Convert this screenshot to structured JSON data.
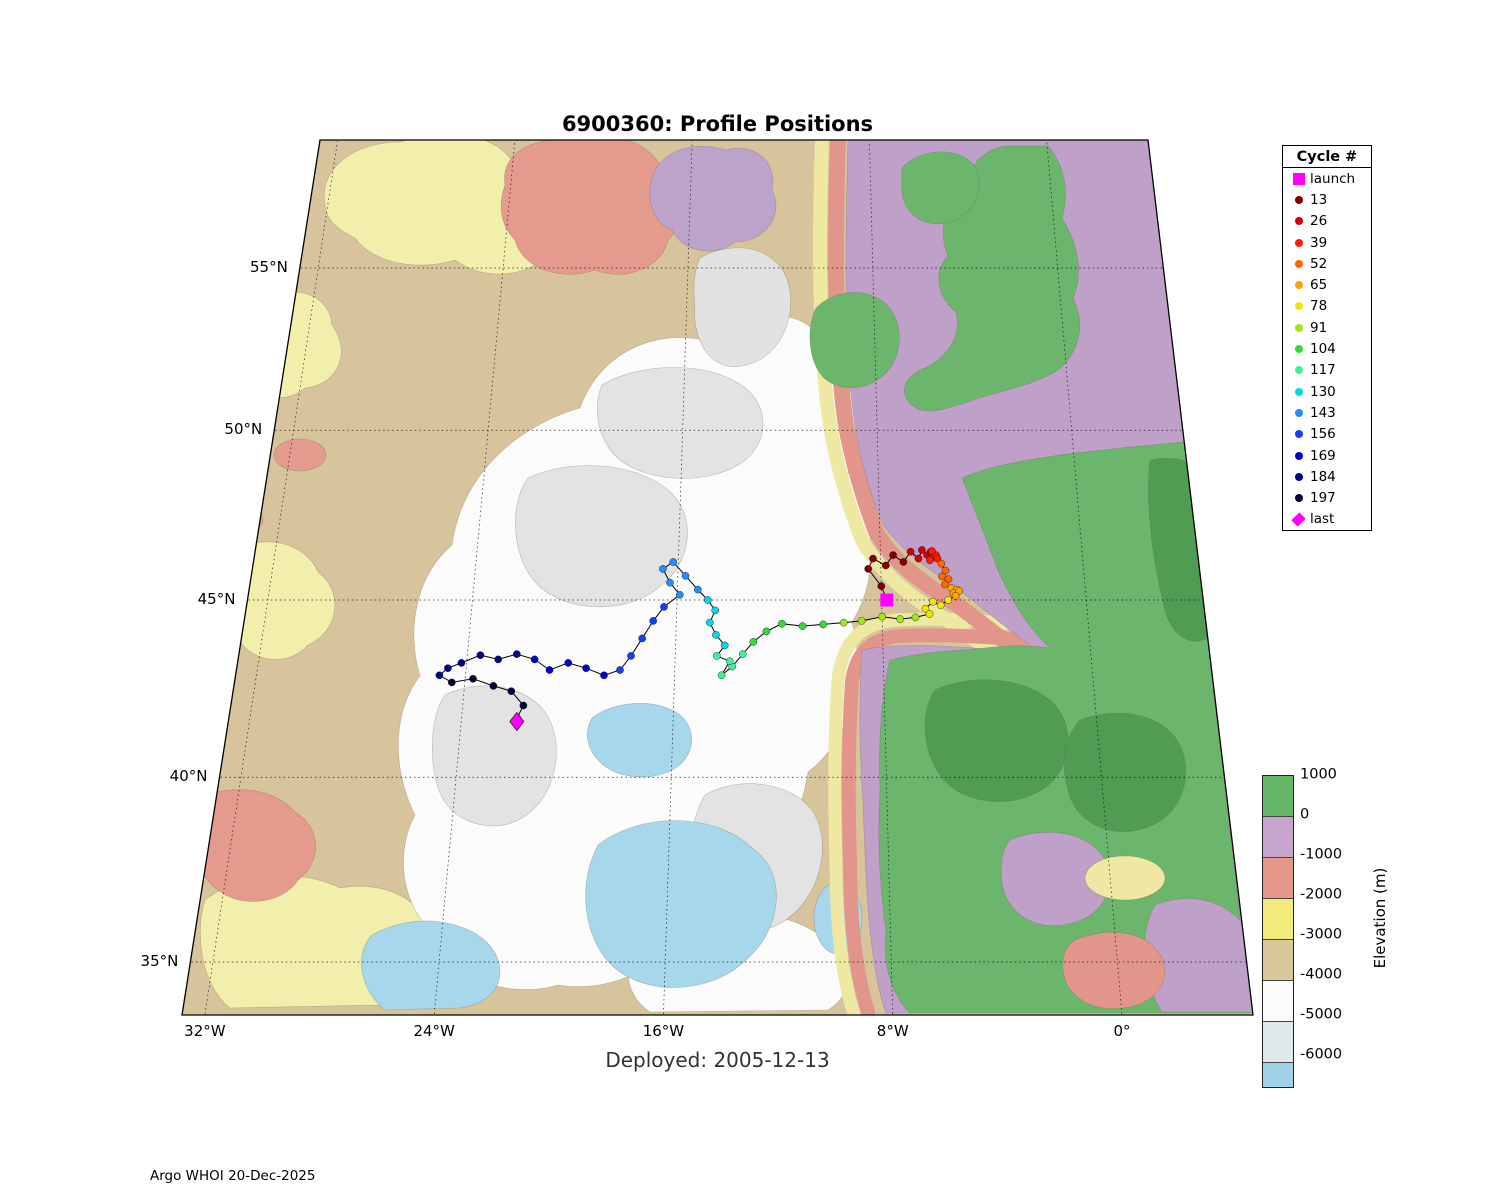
{
  "title": "6900360: Profile Positions",
  "subtitle": "Deployed: 2005-12-13",
  "credit": "Argo WHOI 20-Dec-2025",
  "legend": {
    "title": "Cycle #",
    "entries": [
      {
        "label": "launch",
        "marker": "square",
        "color": "#ff00ff"
      },
      {
        "label": "13",
        "marker": "dot",
        "color": "#7f0000"
      },
      {
        "label": "26",
        "marker": "dot",
        "color": "#d40000"
      },
      {
        "label": "39",
        "marker": "dot",
        "color": "#ff1a00"
      },
      {
        "label": "52",
        "marker": "dot",
        "color": "#ff6600"
      },
      {
        "label": "65",
        "marker": "dot",
        "color": "#ffa500"
      },
      {
        "label": "78",
        "marker": "dot",
        "color": "#eee800"
      },
      {
        "label": "91",
        "marker": "dot",
        "color": "#a0e818"
      },
      {
        "label": "104",
        "marker": "dot",
        "color": "#33dd33"
      },
      {
        "label": "117",
        "marker": "dot",
        "color": "#40f0a0"
      },
      {
        "label": "130",
        "marker": "dot",
        "color": "#00d8e8"
      },
      {
        "label": "143",
        "marker": "dot",
        "color": "#1e90ff"
      },
      {
        "label": "156",
        "marker": "dot",
        "color": "#1a3cff"
      },
      {
        "label": "169",
        "marker": "dot",
        "color": "#0000d8"
      },
      {
        "label": "184",
        "marker": "dot",
        "color": "#000088"
      },
      {
        "label": "197",
        "marker": "dot",
        "color": "#000038"
      },
      {
        "label": "last",
        "marker": "diamond",
        "color": "#ff00ff"
      }
    ]
  },
  "colorbar": {
    "title": "Elevation (m)",
    "labels": [
      "1000",
      "0",
      "-1000",
      "-2000",
      "-3000",
      "-4000",
      "-5000",
      "-6000"
    ],
    "bands": [
      "#66b868",
      "#c7a6ce",
      "#e5978a",
      "#f2ec7d",
      "#d9c89c",
      "#fcfcfc",
      "#dfe9ec",
      "#9fd2e8"
    ]
  },
  "axes": {
    "lat_ticks": [
      {
        "deg": 55,
        "label": "55°N"
      },
      {
        "deg": 50,
        "label": "50°N"
      },
      {
        "deg": 45,
        "label": "45°N"
      },
      {
        "deg": 40,
        "label": "40°N"
      },
      {
        "deg": 35,
        "label": "35°N"
      }
    ],
    "lon_ticks": [
      {
        "deg": -32,
        "label": "32°W"
      },
      {
        "deg": -24,
        "label": "24°W"
      },
      {
        "deg": -16,
        "label": "16°W"
      },
      {
        "deg": -8,
        "label": "8°W"
      },
      {
        "deg": 0,
        "label": "0°"
      }
    ]
  },
  "chart_data": {
    "type": "scatter",
    "title": "6900360: Profile Positions",
    "float_id": "6900360",
    "deployed": "2005-12-13",
    "projection": "conic",
    "lon_range": [
      -33,
      4
    ],
    "lat_range": [
      34,
      59
    ],
    "grid": true,
    "legend_position": "top-right-outside",
    "launch": {
      "lon": -7.8,
      "lat": 45.0
    },
    "last": {
      "lon": -21.9,
      "lat": 41.55
    },
    "track": [
      [
        -8.0,
        45.4,
        1
      ],
      [
        -8.5,
        45.9,
        1
      ],
      [
        -8.3,
        46.2,
        1
      ],
      [
        -7.8,
        46.0,
        1
      ],
      [
        -7.5,
        46.3,
        1
      ],
      [
        -7.1,
        46.1,
        1
      ],
      [
        -6.8,
        46.4,
        2
      ],
      [
        -6.5,
        46.2,
        2
      ],
      [
        -6.35,
        46.45,
        2
      ],
      [
        -6.15,
        46.3,
        2
      ],
      [
        -6.0,
        46.4,
        2
      ],
      [
        -5.9,
        46.25,
        3
      ],
      [
        -6.05,
        46.15,
        3
      ],
      [
        -5.8,
        46.3,
        3
      ],
      [
        -5.95,
        46.42,
        3
      ],
      [
        -5.75,
        46.2,
        3
      ],
      [
        -5.6,
        46.05,
        4
      ],
      [
        -5.45,
        45.85,
        4
      ],
      [
        -5.6,
        45.68,
        4
      ],
      [
        -5.35,
        45.6,
        4
      ],
      [
        -5.5,
        45.45,
        4
      ],
      [
        -5.25,
        45.35,
        5
      ],
      [
        -5.05,
        45.3,
        5
      ],
      [
        -5.18,
        45.2,
        5
      ],
      [
        -4.95,
        45.26,
        5
      ],
      [
        -5.1,
        45.12,
        5
      ],
      [
        -5.4,
        45.0,
        6
      ],
      [
        -5.7,
        44.85,
        6
      ],
      [
        -6.0,
        44.95,
        6
      ],
      [
        -6.3,
        44.75,
        6
      ],
      [
        -6.15,
        44.6,
        6
      ],
      [
        -6.7,
        44.5,
        7
      ],
      [
        -7.3,
        44.45,
        7
      ],
      [
        -8.0,
        44.52,
        7
      ],
      [
        -8.8,
        44.4,
        7
      ],
      [
        -9.5,
        44.35,
        7
      ],
      [
        -10.3,
        44.3,
        8
      ],
      [
        -11.1,
        44.25,
        8
      ],
      [
        -11.9,
        44.32,
        8
      ],
      [
        -12.5,
        44.1,
        8
      ],
      [
        -13.0,
        43.8,
        8
      ],
      [
        -13.4,
        43.45,
        9
      ],
      [
        -13.8,
        43.1,
        9
      ],
      [
        -14.2,
        42.85,
        9
      ],
      [
        -13.9,
        43.25,
        9
      ],
      [
        -14.4,
        43.4,
        9
      ],
      [
        -14.1,
        43.7,
        10
      ],
      [
        -14.45,
        44.0,
        10
      ],
      [
        -14.7,
        44.35,
        10
      ],
      [
        -14.5,
        44.7,
        10
      ],
      [
        -14.8,
        45.0,
        10
      ],
      [
        -15.2,
        45.3,
        11
      ],
      [
        -15.7,
        45.7,
        11
      ],
      [
        -16.2,
        46.1,
        11
      ],
      [
        -16.6,
        45.9,
        11
      ],
      [
        -16.3,
        45.5,
        11
      ],
      [
        -15.9,
        45.15,
        11
      ],
      [
        -16.5,
        44.8,
        12
      ],
      [
        -16.9,
        44.4,
        12
      ],
      [
        -17.3,
        43.9,
        12
      ],
      [
        -17.7,
        43.4,
        12
      ],
      [
        -18.1,
        43.0,
        12
      ],
      [
        -18.7,
        42.85,
        13
      ],
      [
        -19.4,
        43.05,
        13
      ],
      [
        -20.1,
        43.2,
        13
      ],
      [
        -20.8,
        43.0,
        13
      ],
      [
        -21.4,
        43.3,
        13
      ],
      [
        -22.1,
        43.45,
        14
      ],
      [
        -22.8,
        43.3,
        14
      ],
      [
        -23.5,
        43.42,
        14
      ],
      [
        -24.2,
        43.2,
        14
      ],
      [
        -24.7,
        43.05,
        14
      ],
      [
        -25.0,
        42.85,
        14
      ],
      [
        -24.5,
        42.65,
        15
      ],
      [
        -23.7,
        42.75,
        15
      ],
      [
        -22.9,
        42.55,
        15
      ],
      [
        -22.2,
        42.4,
        15
      ],
      [
        -21.7,
        42.0,
        15
      ],
      [
        -21.9,
        41.65,
        15
      ]
    ]
  }
}
